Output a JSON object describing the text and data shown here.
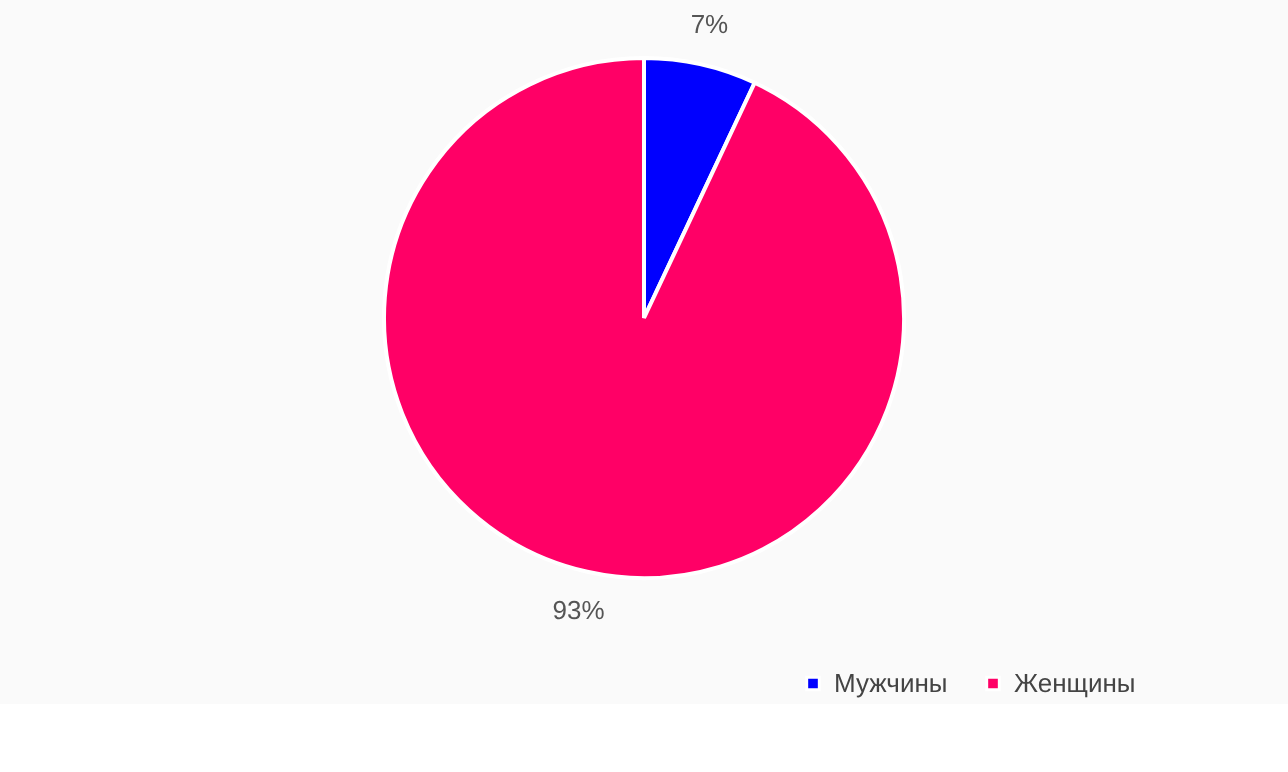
{
  "chart_data": {
    "type": "pie",
    "categories": [
      "Мужчины",
      "Женщины"
    ],
    "values": [
      7,
      93
    ],
    "colors": [
      "#0000ff",
      "#ff0066"
    ],
    "value_labels": [
      "7%",
      "93%"
    ],
    "legend": "bottom right"
  }
}
